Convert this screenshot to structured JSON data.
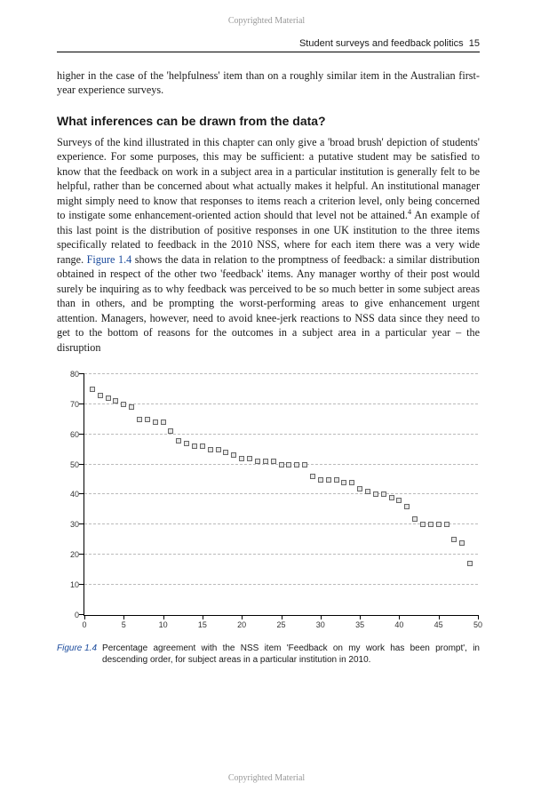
{
  "copyright": "Copyrighted Material",
  "header": {
    "running_title": "Student surveys and feedback politics",
    "page_number": "15"
  },
  "lead_paragraph": "higher in the case of the 'helpfulness' item than on a roughly similar item in the Australian first-year experience surveys.",
  "section": {
    "heading": "What inferences can be drawn from the data?",
    "body_prefix": "Surveys of the kind illustrated in this chapter can only give a 'broad brush' depiction of students' experience. For some purposes, this may be sufficient: a putative student may be satisfied to know that the feedback on work in a subject area in a particular institution is generally felt to be helpful, rather than be concerned about what actually makes it helpful. An institutional manager might simply need to know that responses to items reach a criterion level, only being concerned to instigate some enhancement-oriented action should that level not be attained.",
    "footnote_marker": "4",
    "body_mid": " An example of this last point is the distribution of positive responses in one UK institution to the three items specifically related to feedback in the 2010 NSS, where for each item there was a very wide range. ",
    "figref": "Figure 1.4",
    "body_suffix": " shows the data in relation to the promptness of feedback: a similar distribution obtained in respect of the other two 'feedback' items. Any manager worthy of their post would surely be inquiring as to why feedback was perceived to be so much better in some subject areas than in others, and be prompting the worst-performing areas to give enhancement urgent attention. Managers, however, need to avoid knee-jerk reactions to NSS data since they need to get to the bottom of reasons for the outcomes in a subject area in a particular year – the disruption"
  },
  "figure": {
    "label": "Figure 1.4",
    "caption": "Percentage agreement with the NSS item 'Feedback on my work has been prompt', in descending order, for subject areas in a particular institution in 2010.",
    "chart": {
      "type": "scatter",
      "xlim": [
        0,
        50
      ],
      "ylim": [
        0,
        80
      ],
      "x_ticks": [
        0,
        5,
        10,
        15,
        20,
        25,
        30,
        35,
        40,
        45,
        50
      ],
      "y_ticks": [
        0,
        10,
        20,
        30,
        40,
        50,
        60,
        70,
        80
      ],
      "y_gridlines": [
        10,
        20,
        30,
        40,
        50,
        60,
        70,
        80
      ],
      "marker_size": 6,
      "marker_fill": "#e6e6e6",
      "marker_stroke": "#666666",
      "grid_color": "#bbbbbb",
      "axis_color": "#000000",
      "background_color": "#ffffff",
      "tick_fontsize": 9,
      "data": [
        {
          "x": 1,
          "y": 75
        },
        {
          "x": 2,
          "y": 73
        },
        {
          "x": 3,
          "y": 72
        },
        {
          "x": 4,
          "y": 71
        },
        {
          "x": 5,
          "y": 70
        },
        {
          "x": 6,
          "y": 69
        },
        {
          "x": 7,
          "y": 65
        },
        {
          "x": 8,
          "y": 65
        },
        {
          "x": 9,
          "y": 64
        },
        {
          "x": 10,
          "y": 64
        },
        {
          "x": 11,
          "y": 61
        },
        {
          "x": 12,
          "y": 58
        },
        {
          "x": 13,
          "y": 57
        },
        {
          "x": 14,
          "y": 56
        },
        {
          "x": 15,
          "y": 56
        },
        {
          "x": 16,
          "y": 55
        },
        {
          "x": 17,
          "y": 55
        },
        {
          "x": 18,
          "y": 54
        },
        {
          "x": 19,
          "y": 53
        },
        {
          "x": 20,
          "y": 52
        },
        {
          "x": 21,
          "y": 52
        },
        {
          "x": 22,
          "y": 51
        },
        {
          "x": 23,
          "y": 51
        },
        {
          "x": 24,
          "y": 51
        },
        {
          "x": 25,
          "y": 50
        },
        {
          "x": 26,
          "y": 50
        },
        {
          "x": 27,
          "y": 50
        },
        {
          "x": 28,
          "y": 50
        },
        {
          "x": 29,
          "y": 46
        },
        {
          "x": 30,
          "y": 45
        },
        {
          "x": 31,
          "y": 45
        },
        {
          "x": 32,
          "y": 45
        },
        {
          "x": 33,
          "y": 44
        },
        {
          "x": 34,
          "y": 44
        },
        {
          "x": 35,
          "y": 42
        },
        {
          "x": 36,
          "y": 41
        },
        {
          "x": 37,
          "y": 40
        },
        {
          "x": 38,
          "y": 40
        },
        {
          "x": 39,
          "y": 39
        },
        {
          "x": 40,
          "y": 38
        },
        {
          "x": 41,
          "y": 36
        },
        {
          "x": 42,
          "y": 32
        },
        {
          "x": 43,
          "y": 30
        },
        {
          "x": 44,
          "y": 30
        },
        {
          "x": 45,
          "y": 30
        },
        {
          "x": 46,
          "y": 30
        },
        {
          "x": 47,
          "y": 25
        },
        {
          "x": 48,
          "y": 24
        },
        {
          "x": 49,
          "y": 17
        }
      ]
    }
  }
}
